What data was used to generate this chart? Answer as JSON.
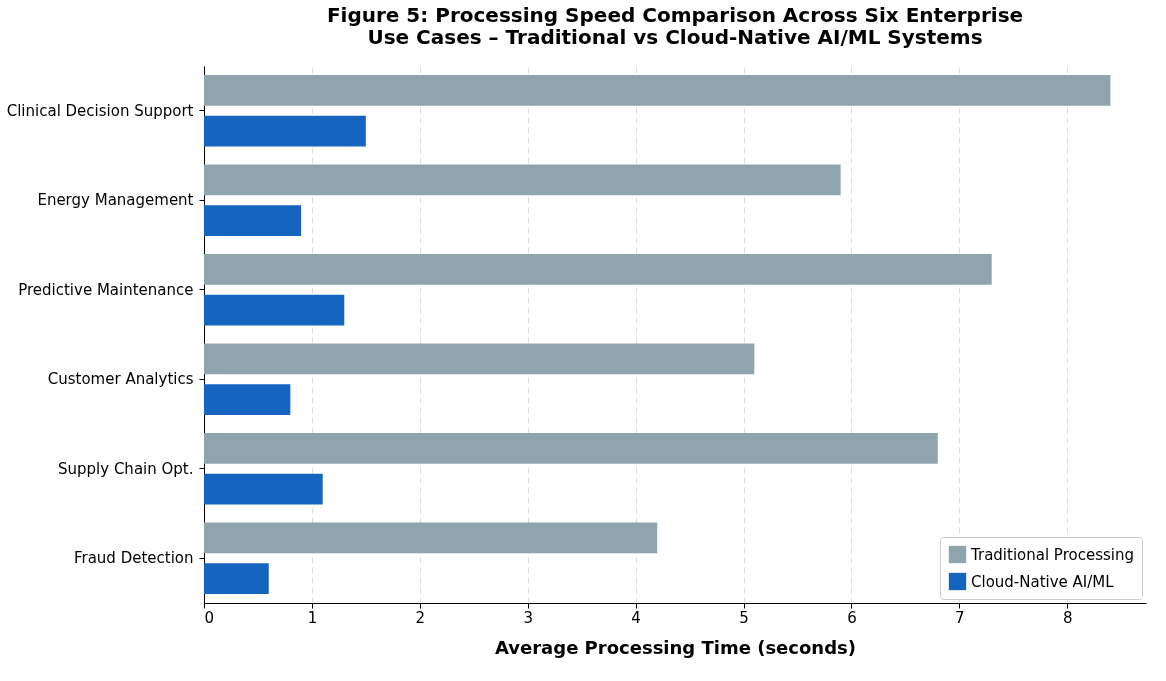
{
  "chart_data": {
    "type": "bar",
    "orientation": "horizontal",
    "title": "Figure 5: Processing Speed Comparison Across Six Enterprise\nUse Cases – Traditional vs Cloud-Native AI/ML Systems",
    "xlabel": "Average Processing Time (seconds)",
    "categories": [
      "Clinical Decision Support",
      "Energy Management",
      "Predictive Maintenance",
      "Customer Analytics",
      "Supply Chain Opt.",
      "Fraud Detection"
    ],
    "series": [
      {
        "name": "Traditional Processing",
        "color": "#90a4ae",
        "values": [
          8.4,
          5.9,
          7.3,
          5.1,
          6.8,
          4.2
        ]
      },
      {
        "name": "Cloud-Native AI/ML",
        "color": "#1565c0",
        "values": [
          1.5,
          0.9,
          1.3,
          0.8,
          1.1,
          0.6
        ]
      }
    ],
    "xlim": [
      0,
      8.73
    ],
    "xticks": [
      0,
      1,
      2,
      3,
      4,
      5,
      6,
      7,
      8
    ],
    "grid": "x",
    "legend": "bottom right"
  }
}
